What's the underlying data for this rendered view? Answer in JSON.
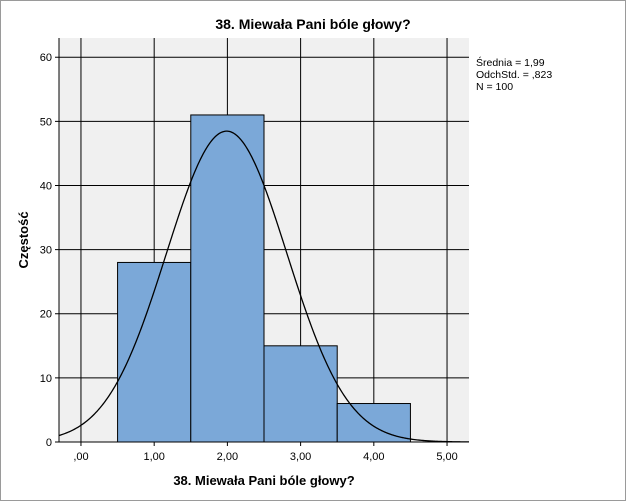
{
  "chart_data": {
    "type": "bar",
    "title": "38. Miewała Pani bóle głowy?",
    "xlabel": "38. Miewała Pani bóle głowy?",
    "ylabel": "Częstość",
    "x_ticks": [
      {
        "value": 0,
        "label": ",00"
      },
      {
        "value": 1,
        "label": "1,00"
      },
      {
        "value": 2,
        "label": "2,00"
      },
      {
        "value": 3,
        "label": "3,00"
      },
      {
        "value": 4,
        "label": "4,00"
      },
      {
        "value": 5,
        "label": "5,00"
      }
    ],
    "y_ticks": [
      0,
      10,
      20,
      30,
      40,
      50,
      60
    ],
    "xlim": [
      -0.3,
      5.3
    ],
    "ylim": [
      0,
      63
    ],
    "bins": [
      {
        "x0": 0.5,
        "x1": 1.5,
        "count": 28
      },
      {
        "x0": 1.5,
        "x1": 2.5,
        "count": 51
      },
      {
        "x0": 2.5,
        "x1": 3.5,
        "count": 15
      },
      {
        "x0": 3.5,
        "x1": 4.5,
        "count": 6
      }
    ],
    "normal_curve": {
      "mean": 1.99,
      "sd": 0.823,
      "n": 100,
      "bin_width": 1
    },
    "stats_text": [
      "Średnia = 1,99",
      "OdchStd. = ,823",
      "N = 100"
    ],
    "grid": true,
    "colors": {
      "bar_fill": "#7ba8d8",
      "bar_stroke": "#000000",
      "plot_bg": "#f0f0f0",
      "grid": "#000000"
    }
  }
}
